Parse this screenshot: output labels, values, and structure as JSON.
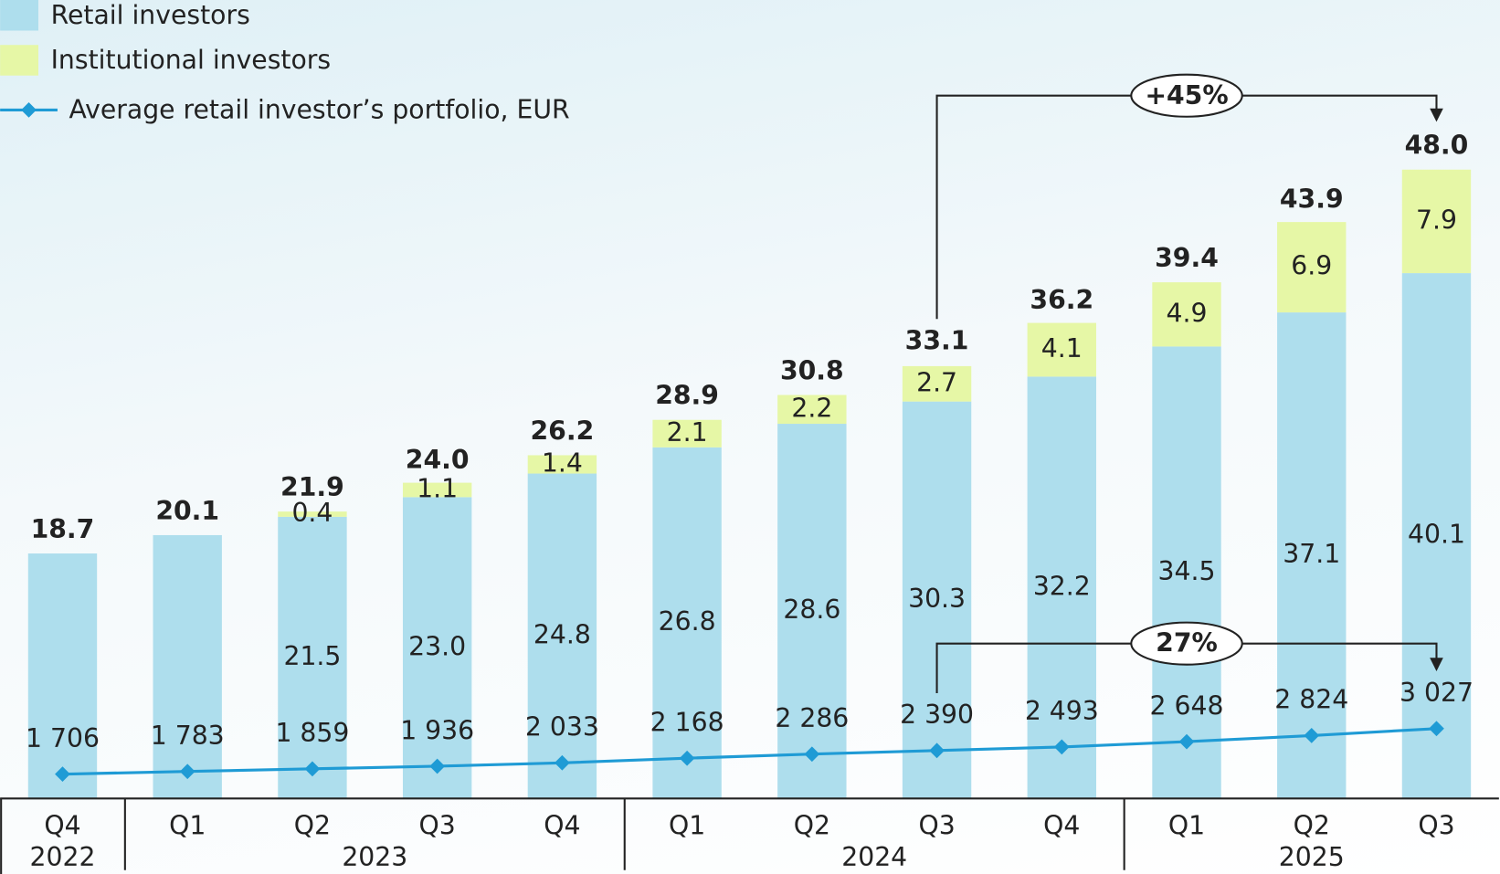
{
  "chart_data": {
    "type": "stacked-bar-line",
    "categories": [
      "Q4",
      "Q1",
      "Q2",
      "Q3",
      "Q4",
      "Q1",
      "Q2",
      "Q3",
      "Q4",
      "Q1",
      "Q2",
      "Q3"
    ],
    "year_groups": [
      {
        "label": "2022",
        "span": 1
      },
      {
        "label": "2023",
        "span": 4
      },
      {
        "label": "2024",
        "span": 4
      },
      {
        "label": "2025",
        "span": 3
      }
    ],
    "series": [
      {
        "name": "Retail investors",
        "color": "#aedeed",
        "values": [
          18.7,
          20.1,
          21.5,
          23.0,
          24.8,
          26.8,
          28.6,
          30.3,
          32.2,
          34.5,
          37.1,
          40.1
        ],
        "value_labels": [
          null,
          null,
          "21.5",
          "23.0",
          "24.8",
          "26.8",
          "28.6",
          "30.3",
          "32.2",
          "34.5",
          "37.1",
          "40.1"
        ]
      },
      {
        "name": "Institutional investors",
        "color": "#e6f7a6",
        "values": [
          null,
          null,
          0.4,
          1.1,
          1.4,
          2.1,
          2.2,
          2.7,
          4.1,
          4.9,
          6.9,
          7.9
        ],
        "value_labels": [
          null,
          null,
          "0.4",
          "1.1",
          "1.4",
          "2.1",
          "2.2",
          "2.7",
          "4.1",
          "4.9",
          "6.9",
          "7.9"
        ]
      },
      {
        "name": "Average retail investor’s portfolio, EUR",
        "color": "#1f9bd5",
        "axis": "y2",
        "values": [
          1706,
          1783,
          1859,
          1936,
          2033,
          2168,
          2286,
          2390,
          2493,
          2648,
          2824,
          3027
        ],
        "value_labels": [
          "1 706",
          "1 783",
          "1 859",
          "1 936",
          "2 033",
          "2 168",
          "2 286",
          "2 390",
          "2 493",
          "2 648",
          "2 824",
          "3 027"
        ]
      }
    ],
    "totals": {
      "values": [
        18.7,
        20.1,
        21.9,
        24.0,
        26.2,
        28.9,
        30.8,
        33.1,
        36.2,
        39.4,
        43.9,
        48.0
      ],
      "value_labels": [
        "18.7",
        "20.1",
        "21.9",
        "24.0",
        "26.2",
        "28.9",
        "30.8",
        "33.1",
        "36.2",
        "39.4",
        "43.9",
        "48.0"
      ]
    },
    "annotations": [
      {
        "text": "+45%",
        "from": 7,
        "to": 11,
        "target": "totals"
      },
      {
        "text": "27%",
        "from": 7,
        "to": 11,
        "target": "line"
      }
    ],
    "ylim": [
      0,
      50
    ],
    "y2lim": [
      1000,
      20000
    ],
    "legend": "top-left"
  }
}
